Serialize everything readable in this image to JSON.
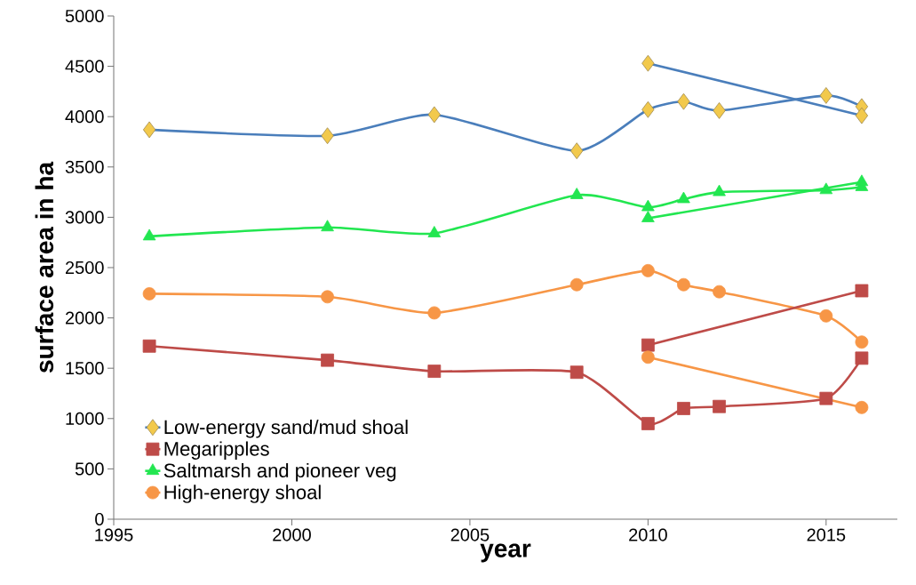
{
  "chart_data": {
    "type": "line",
    "xlabel": "year",
    "ylabel": "surface area in ha",
    "xlim": [
      1995,
      2017
    ],
    "xticks": [
      1995,
      2000,
      2005,
      2010,
      2015
    ],
    "ylim": [
      0,
      5000
    ],
    "yticks": [
      0,
      500,
      1000,
      1500,
      2000,
      2500,
      3000,
      3500,
      4000,
      4500,
      5000
    ],
    "grid": false,
    "legend": "bottom left",
    "series": [
      {
        "name": "Low-energy sand/mud shoal",
        "color": "#4a7ebb",
        "marker": "diamond",
        "x": [
          1996,
          2001,
          2004,
          2008,
          2010,
          2011,
          2012,
          2015,
          2016
        ],
        "values": [
          3870,
          3810,
          4020,
          3660,
          4070,
          4150,
          4060,
          4210,
          4100
        ]
      },
      {
        "name": "Megaripples",
        "color": "#be4b48",
        "marker": "square",
        "x": [
          1996,
          2001,
          2004,
          2008,
          2010,
          2011,
          2012,
          2015,
          2016
        ],
        "values": [
          1720,
          1580,
          1470,
          1460,
          950,
          1100,
          1120,
          1200,
          1600
        ]
      },
      {
        "name": "Saltmarsh and pioneer veg",
        "color": "#22e650",
        "marker": "triangle",
        "x": [
          1996,
          2001,
          2004,
          2008,
          2010,
          2011,
          2012,
          2015,
          2016
        ],
        "values": [
          2810,
          2900,
          2840,
          3220,
          3100,
          3180,
          3250,
          3270,
          3300
        ]
      },
      {
        "name": "High-energy shoal",
        "color": "#f79646",
        "marker": "circle",
        "x": [
          1996,
          2001,
          2004,
          2008,
          2010,
          2011,
          2012,
          2015,
          2016
        ],
        "values": [
          2240,
          2210,
          2050,
          2330,
          2470,
          2330,
          2260,
          2020,
          1760
        ]
      },
      {
        "color": "#4a7ebb",
        "marker": "diamond",
        "x": [
          2010,
          2016
        ],
        "values": [
          4530,
          4010
        ]
      },
      {
        "color": "#be4b48",
        "marker": "square",
        "x": [
          2010,
          2016
        ],
        "values": [
          1730,
          2270
        ]
      },
      {
        "color": "#22e650",
        "marker": "triangle",
        "x": [
          2010,
          2016
        ],
        "values": [
          2990,
          3350
        ]
      },
      {
        "color": "#f79646",
        "marker": "circle",
        "x": [
          2010,
          2016
        ],
        "values": [
          1610,
          1110
        ]
      }
    ]
  }
}
